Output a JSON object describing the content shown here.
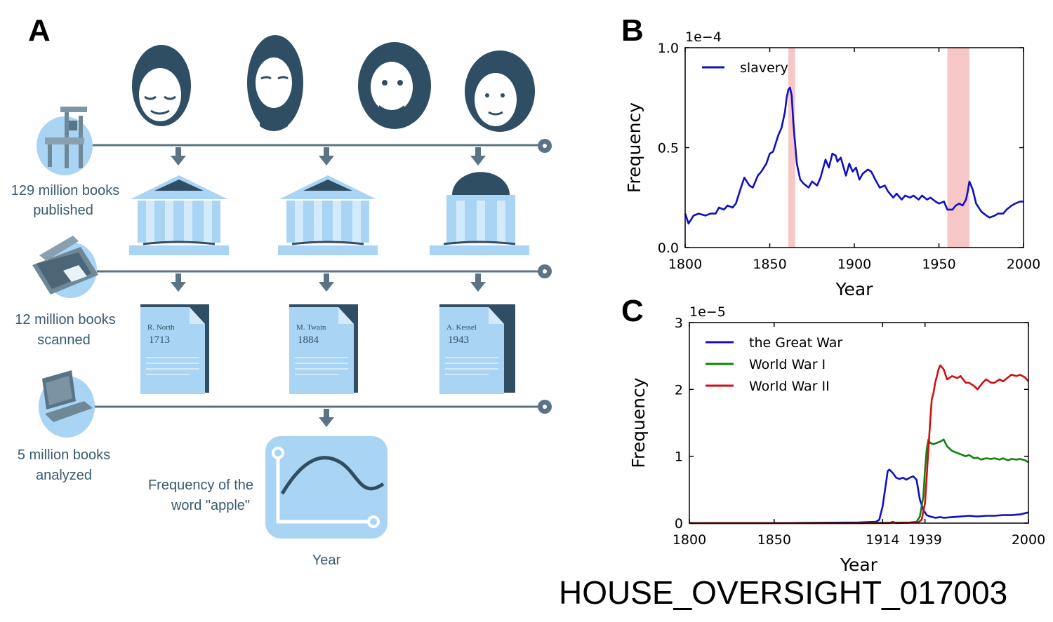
{
  "panelA": {
    "letter": "A",
    "stages": [
      {
        "label_lines": [
          "129 million books",
          "published"
        ]
      },
      {
        "label_lines": [
          "12 million books",
          "scanned"
        ]
      },
      {
        "label_lines": [
          "5 million books",
          "analyzed"
        ]
      }
    ],
    "books": [
      {
        "author": "R. North",
        "year": "1713"
      },
      {
        "author": "M. Twain",
        "year": "1884"
      },
      {
        "author": "A. Kessel",
        "year": "1943"
      }
    ],
    "result_label_lines": [
      "Frequency of the",
      "word \"apple\""
    ],
    "result_axis_label": "Year"
  },
  "chart_data": [
    {
      "panel": "B",
      "type": "line",
      "title": "",
      "xlabel": "Year",
      "ylabel": "Frequency",
      "scale_note": "1e−4",
      "xlim": [
        1800,
        2000
      ],
      "ylim": [
        0,
        1.0
      ],
      "xticks": [
        1800,
        1850,
        1900,
        1950,
        2000
      ],
      "yticks": [
        {
          "v": 0,
          "t": "0.0"
        },
        {
          "v": 0.5,
          "t": "0.5"
        },
        {
          "v": 1.0,
          "t": "1.0"
        }
      ],
      "shaded_spans": [
        [
          1861,
          1865
        ],
        [
          1955,
          1968
        ]
      ],
      "legend": "top-left",
      "series": [
        {
          "name": "slavery",
          "color": "#1010c0",
          "x": [
            1800,
            1802,
            1805,
            1808,
            1812,
            1815,
            1818,
            1820,
            1823,
            1825,
            1828,
            1830,
            1833,
            1835,
            1838,
            1840,
            1843,
            1845,
            1848,
            1850,
            1852,
            1855,
            1857,
            1859,
            1860,
            1861,
            1862,
            1863,
            1864,
            1866,
            1868,
            1870,
            1873,
            1875,
            1878,
            1880,
            1883,
            1885,
            1887,
            1889,
            1890,
            1892,
            1895,
            1897,
            1899,
            1901,
            1903,
            1905,
            1908,
            1910,
            1913,
            1915,
            1918,
            1920,
            1923,
            1925,
            1928,
            1930,
            1933,
            1935,
            1938,
            1940,
            1943,
            1945,
            1948,
            1950,
            1953,
            1955,
            1958,
            1960,
            1962,
            1964,
            1966,
            1967,
            1968,
            1970,
            1972,
            1975,
            1978,
            1980,
            1983,
            1985,
            1988,
            1990,
            1993,
            1995,
            1998,
            2000
          ],
          "y": [
            0.17,
            0.12,
            0.16,
            0.17,
            0.16,
            0.17,
            0.17,
            0.2,
            0.19,
            0.21,
            0.2,
            0.22,
            0.3,
            0.35,
            0.31,
            0.3,
            0.36,
            0.38,
            0.42,
            0.47,
            0.48,
            0.56,
            0.6,
            0.68,
            0.75,
            0.79,
            0.8,
            0.76,
            0.62,
            0.42,
            0.34,
            0.32,
            0.3,
            0.33,
            0.31,
            0.35,
            0.44,
            0.4,
            0.47,
            0.46,
            0.43,
            0.45,
            0.36,
            0.42,
            0.38,
            0.4,
            0.34,
            0.37,
            0.39,
            0.38,
            0.33,
            0.3,
            0.31,
            0.28,
            0.25,
            0.27,
            0.24,
            0.26,
            0.25,
            0.26,
            0.24,
            0.26,
            0.24,
            0.25,
            0.23,
            0.22,
            0.23,
            0.19,
            0.19,
            0.21,
            0.22,
            0.21,
            0.24,
            0.28,
            0.33,
            0.29,
            0.22,
            0.18,
            0.16,
            0.15,
            0.16,
            0.17,
            0.17,
            0.19,
            0.21,
            0.22,
            0.23,
            0.23
          ]
        }
      ]
    },
    {
      "panel": "C",
      "type": "line",
      "title": "",
      "xlabel": "Year",
      "ylabel": "Frequency",
      "scale_note": "1e−5",
      "xlim": [
        1800,
        2000
      ],
      "ylim": [
        0,
        3
      ],
      "xticks": [
        1800,
        1850,
        1914,
        1939,
        2000
      ],
      "yticks": [
        {
          "v": 0,
          "t": "0"
        },
        {
          "v": 1,
          "t": "1"
        },
        {
          "v": 2,
          "t": "2"
        },
        {
          "v": 3,
          "t": "3"
        }
      ],
      "legend": "top-left",
      "series": [
        {
          "name": "the Great War",
          "color": "#1010c0",
          "x": [
            1800,
            1850,
            1900,
            1910,
            1912,
            1914,
            1916,
            1917,
            1918,
            1920,
            1922,
            1924,
            1926,
            1928,
            1930,
            1932,
            1934,
            1936,
            1938,
            1940,
            1942,
            1945,
            1948,
            1950,
            1955,
            1960,
            1965,
            1970,
            1975,
            1980,
            1985,
            1990,
            1995,
            2000
          ],
          "y": [
            0,
            0,
            0.01,
            0.02,
            0.05,
            0.25,
            0.6,
            0.78,
            0.8,
            0.75,
            0.68,
            0.66,
            0.68,
            0.65,
            0.68,
            0.7,
            0.65,
            0.35,
            0.2,
            0.12,
            0.1,
            0.08,
            0.09,
            0.08,
            0.09,
            0.1,
            0.11,
            0.1,
            0.11,
            0.11,
            0.12,
            0.12,
            0.13,
            0.16
          ]
        },
        {
          "name": "World War I",
          "color": "#108010",
          "x": [
            1800,
            1900,
            1930,
            1934,
            1936,
            1938,
            1939,
            1940,
            1941,
            1942,
            1944,
            1946,
            1948,
            1950,
            1952,
            1955,
            1958,
            1960,
            1963,
            1965,
            1968,
            1970,
            1972,
            1975,
            1978,
            1980,
            1983,
            1985,
            1988,
            1990,
            1993,
            1995,
            1998,
            2000
          ],
          "y": [
            0,
            0,
            0.01,
            0.02,
            0.1,
            0.4,
            0.8,
            1.1,
            1.25,
            1.2,
            1.18,
            1.2,
            1.22,
            1.25,
            1.15,
            1.08,
            1.05,
            1.03,
            1.0,
            1.02,
            0.97,
            0.98,
            0.95,
            0.97,
            0.96,
            0.97,
            0.95,
            0.97,
            0.94,
            0.96,
            0.95,
            0.96,
            0.94,
            0.91
          ]
        },
        {
          "name": "World War II",
          "color": "#d01010",
          "x": [
            1800,
            1900,
            1918,
            1920,
            1922,
            1935,
            1937,
            1939,
            1940,
            1941,
            1942,
            1943,
            1944,
            1945,
            1946,
            1947,
            1948,
            1950,
            1952,
            1955,
            1958,
            1960,
            1963,
            1965,
            1968,
            1970,
            1973,
            1975,
            1978,
            1980,
            1983,
            1985,
            1988,
            1990,
            1993,
            1995,
            1998,
            2000
          ],
          "y": [
            0,
            0,
            0,
            0.02,
            0,
            0.01,
            0.05,
            0.3,
            0.7,
            1.1,
            1.5,
            1.85,
            1.95,
            2.1,
            2.2,
            2.3,
            2.36,
            2.3,
            2.15,
            2.2,
            2.17,
            2.2,
            2.1,
            2.1,
            2.05,
            2.0,
            2.1,
            2.15,
            2.1,
            2.1,
            2.15,
            2.12,
            2.18,
            2.22,
            2.2,
            2.22,
            2.18,
            2.12
          ]
        }
      ]
    }
  ],
  "footer": "HOUSE_OVERSIGHT_017003",
  "colors": {
    "ink": "#3a5a70",
    "light": "#a9d4f3",
    "pale": "#d3eafb",
    "shade": "#f7c6c6"
  }
}
